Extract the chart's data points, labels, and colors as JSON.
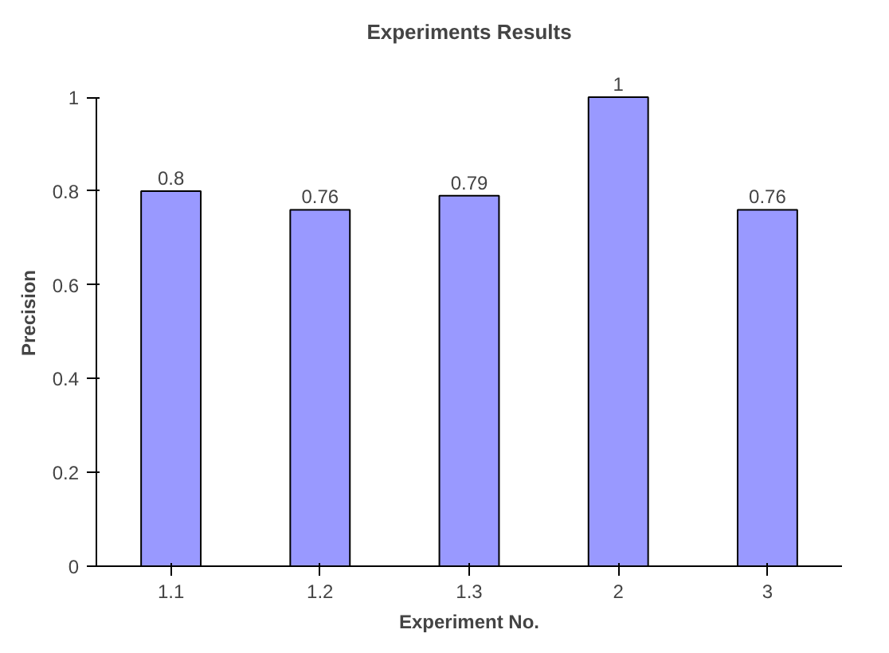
{
  "chart_data": {
    "type": "bar",
    "title": "Experiments Results",
    "xlabel": "Experiment No.",
    "ylabel": "Precision",
    "categories": [
      "1.1",
      "1.2",
      "1.3",
      "2",
      "3"
    ],
    "series": [
      {
        "color": "#9999ff",
        "values": [
          0.8,
          0.76,
          0.79,
          1,
          0.76
        ]
      }
    ],
    "ylim": [
      0,
      1
    ],
    "yticks": [
      0,
      0.2,
      0.4,
      0.6,
      0.8,
      1
    ],
    "grid": false,
    "data_labels": true
  }
}
